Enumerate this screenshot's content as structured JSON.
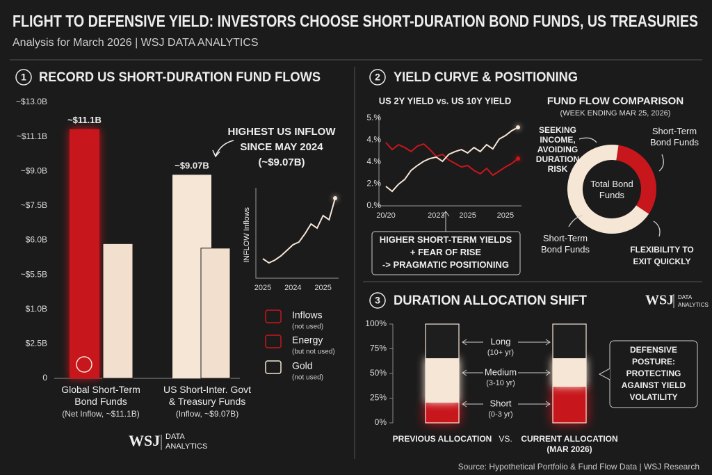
{
  "header": {
    "title": "FLIGHT TO DEFENSIVE YIELD: INVESTORS CHOOSE SHORT-DURATION BOND FUNDS, US TREASURIES",
    "subtitle": "Analysis for March 2026 | WSJ DATA ANALYTICS"
  },
  "panels": [
    {
      "number": "1",
      "title": "RECORD US SHORT-DURATION FUND FLOWS"
    },
    {
      "number": "2",
      "title": "YIELD CURVE & POSITIONING"
    },
    {
      "number": "3",
      "title": "DURATION ALLOCATION SHIFT"
    }
  ],
  "legend": [
    {
      "label": "Inflows",
      "note": "(not used)"
    },
    {
      "label": "Energy",
      "note": "(but not used)"
    },
    {
      "label": "Gold",
      "note": "(not used)"
    }
  ],
  "logos": [
    {
      "brand": "WSJ",
      "text": "DATA\nANALYTICS"
    },
    {
      "brand": "WSJ",
      "text": "DATA\nANALYTICS"
    }
  ],
  "source": "Source: Hypothetical Portfolio & Fund Flow Data | WSJ Research",
  "chart_data": [
    {
      "type": "bar",
      "categories": [
        "Global Short-Term\nBond Funds",
        "US Short-Inter. Govt\n& Treasury Funds"
      ],
      "category_notes": [
        "(Net Inflow, ~$11.1B)",
        "(Inflow, ~$9.07B)"
      ],
      "y_labels": [
        "~$13.0B",
        "~$11.1B",
        "~$9.0B",
        "~$7.5B",
        "$6.0B",
        "~$5.5B",
        "$1.0B",
        "$2.5B",
        "0"
      ],
      "ylim": [
        0,
        12.3
      ],
      "series": [
        {
          "colors": [
            "#c8161d",
            "#f6e6d6"
          ],
          "values": [
            11.1,
            9.07
          ],
          "value_labels": [
            "~$11.1B",
            "~$9.07B"
          ]
        },
        {
          "color": "#f2dfcd",
          "values": [
            6.0,
            5.8
          ]
        }
      ],
      "annotation": "HIGHEST US INFLOW\nSINCE MAY 2024\n(~$9.07B)"
    },
    {
      "type": "line",
      "ylabel": "INFLOW Inflows",
      "categories": [
        "2025",
        null,
        null,
        null,
        null,
        "2024",
        null,
        null,
        null,
        null,
        "2025",
        null,
        null
      ],
      "ylim": [
        0,
        125
      ],
      "series": [
        {
          "color": "#f6e6d6",
          "values": [
            28,
            22,
            26,
            32,
            40,
            48,
            52,
            64,
            78,
            72,
            90,
            84,
            115
          ]
        }
      ]
    },
    {
      "type": "line",
      "title": "US 2Y YIELD vs. US 10Y YIELD",
      "categories": [
        "20/20",
        null,
        null,
        null,
        null,
        null,
        null,
        null,
        "2023",
        null,
        null,
        null,
        null,
        "2025",
        null,
        null,
        null,
        null,
        null,
        "2025",
        null,
        null
      ],
      "y_labels": [
        "5.%",
        "4.%",
        "4.%",
        "2.%",
        "0.%"
      ],
      "ylim": [
        0,
        5
      ],
      "series": [
        {
          "color": "#c8161d",
          "values": [
            3.61,
            3.21,
            3.49,
            3.33,
            3.1,
            3.41,
            3.53,
            3.21,
            2.82,
            2.94,
            2.62,
            2.42,
            2.22,
            2.3,
            2.02,
            1.83,
            2.14,
            1.75,
            1.98,
            2.22,
            2.42,
            2.7
          ]
        },
        {
          "color": "#f6e6d6",
          "values": [
            1.11,
            0.83,
            1.23,
            1.51,
            2.02,
            2.3,
            2.54,
            2.7,
            2.78,
            2.54,
            2.94,
            3.1,
            3.21,
            3.02,
            3.33,
            3.1,
            3.49,
            3.25,
            3.81,
            4.01,
            4.29,
            4.48
          ]
        }
      ],
      "annotation": "HIGHER SHORT-TERM YIELDS\n+ FEAR OF RISE\n-> PRAGMATIC POSITIONING"
    },
    {
      "type": "pie",
      "title": "FUND FLOW COMPARISON",
      "subtitle": "(WEEK ENDING MAR 25, 2026)",
      "center_label": "Total Bond\nFunds",
      "categories": [
        "Short-Term\nBond Funds",
        "Short-Term\nBond Funds"
      ],
      "values": [
        32,
        68
      ],
      "colors": [
        "#c8161d",
        "#f6e6d6"
      ],
      "annotations": [
        "SEEKING\nINCOME,\nAVOIDING\nDURATION\nRISK",
        "FLEXIBILITY TO\nEXIT QUICKLY"
      ]
    },
    {
      "type": "stacked_bar",
      "categories": [
        "PREVIOUS ALLOCATION",
        "CURRENT ALLOCATION\n(MAR 2026)"
      ],
      "separator": "VS.",
      "ylim": [
        0,
        100
      ],
      "yticks": [
        {
          "value": 0,
          "label": "0%"
        },
        {
          "value": 25,
          "label": "25%"
        },
        {
          "value": 50,
          "label": "50%"
        },
        {
          "value": 75,
          "label": "75%"
        },
        {
          "value": 100,
          "label": "100%"
        }
      ],
      "series": [
        {
          "name": "Short",
          "note": "(0-3 yr)",
          "color": "#c8161d",
          "values": [
            21,
            37
          ]
        },
        {
          "name": "Medium",
          "note": "(3-10 yr)",
          "color": "#f6e6d6",
          "values": [
            44,
            28
          ]
        },
        {
          "name": "Long",
          "note": "(10+ yr)",
          "color": "#1e1e1e",
          "values": [
            35,
            35
          ]
        }
      ],
      "callout": "DEFENSIVE\nPOSTURE:\nPROTECTING\nAGAINST YIELD\nVOLATILITY"
    }
  ]
}
